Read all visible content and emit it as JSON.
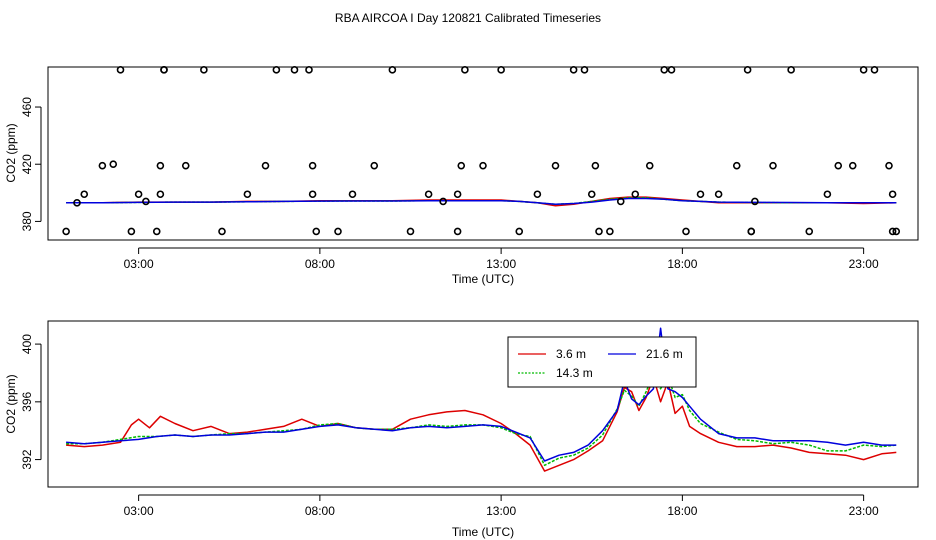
{
  "title": "RBA AIRCOA I  Day 120821  Calibrated Timeseries",
  "colors": {
    "s36": "#dd0000",
    "s143": "#00bb00",
    "s216": "#0000dd",
    "points": "#000000"
  },
  "chart_data": [
    {
      "type": "line",
      "panel": "top",
      "xlabel": "Time (UTC)",
      "ylabel": "CO2 (ppm)",
      "xlim": [
        0.5,
        24.5
      ],
      "ylim": [
        367,
        488
      ],
      "xticks": [
        3,
        8,
        13,
        18,
        23
      ],
      "xtick_labels": [
        "03:00",
        "08:00",
        "13:00",
        "18:00",
        "23:00"
      ],
      "yticks": [
        380,
        420,
        460
      ],
      "ytick_labels": [
        "380",
        "420",
        "460"
      ],
      "grid": false,
      "legend": "none",
      "series": [
        {
          "key": "s36",
          "style": "line",
          "x": [
            1,
            2,
            3,
            4,
            5,
            6,
            7,
            8,
            9,
            10,
            11,
            12,
            13,
            13.5,
            14,
            14.5,
            15,
            15.5,
            16,
            16.5,
            17,
            17.5,
            18,
            18.5,
            19,
            20,
            21,
            22,
            23,
            23.9
          ],
          "y": [
            393,
            393,
            393.5,
            393.5,
            393.5,
            394,
            394,
            394.5,
            394.5,
            394.5,
            395,
            395,
            395,
            394,
            393,
            391,
            392,
            394,
            396,
            397,
            397,
            396,
            395,
            394,
            393,
            393,
            393,
            393,
            392.5,
            393
          ]
        },
        {
          "key": "s143",
          "style": "line",
          "x": [
            1,
            2,
            3,
            4,
            5,
            6,
            7,
            8,
            9,
            10,
            11,
            12,
            13,
            13.5,
            14,
            14.5,
            15,
            15.5,
            16,
            16.5,
            17,
            17.5,
            18,
            18.5,
            19,
            20,
            21,
            22,
            23,
            23.9
          ],
          "y": [
            393,
            393,
            393.3,
            393.5,
            393.5,
            393.7,
            394,
            394.2,
            394.3,
            394.3,
            394.5,
            394.5,
            394.5,
            394,
            393,
            392,
            392.5,
            394,
            395.5,
            396.5,
            396.5,
            395.5,
            394.5,
            394,
            393.5,
            393.2,
            393,
            393,
            393,
            393
          ]
        },
        {
          "key": "s216",
          "style": "line",
          "x": [
            1,
            2,
            3,
            4,
            5,
            6,
            7,
            8,
            9,
            10,
            11,
            12,
            13,
            13.5,
            14,
            14.5,
            15,
            15.5,
            16,
            16.5,
            17,
            17.5,
            18,
            18.5,
            19,
            20,
            21,
            22,
            23,
            23.9
          ],
          "y": [
            393,
            393,
            393.3,
            393.5,
            393.5,
            393.7,
            394,
            394.2,
            394.3,
            394.3,
            394.5,
            394.5,
            394.5,
            394,
            393,
            392,
            392.5,
            393.5,
            395,
            396,
            396,
            395.5,
            394.5,
            394,
            393.5,
            393.3,
            393.2,
            393,
            393,
            393
          ]
        },
        {
          "key": "points",
          "style": "points",
          "x": [
            1.0,
            1.3,
            1.5,
            2.0,
            2.3,
            2.5,
            2.8,
            3.0,
            3.2,
            3.5,
            3.6,
            3.6,
            3.7,
            3.7,
            4.3,
            4.8,
            5.3,
            6.0,
            6.5,
            6.8,
            7.3,
            7.7,
            7.8,
            7.8,
            7.9,
            8.5,
            8.9,
            9.5,
            10.0,
            10.5,
            11.0,
            11.4,
            11.8,
            11.8,
            11.9,
            12.0,
            12.5,
            13.0,
            13.5,
            14.0,
            14.5,
            15.0,
            15.3,
            15.5,
            15.6,
            15.7,
            16.0,
            16.3,
            16.7,
            17.1,
            17.5,
            17.7,
            18.1,
            18.5,
            19.0,
            19.5,
            19.8,
            19.9,
            19.9,
            20.0,
            20.5,
            21.0,
            21.5,
            22.0,
            22.3,
            22.7,
            23.0,
            23.3,
            23.7,
            23.8,
            23.8,
            23.9
          ],
          "y": [
            373,
            393,
            399,
            419,
            420,
            486,
            373,
            399,
            394,
            373,
            399,
            419,
            486,
            486,
            419,
            486,
            373,
            399,
            419,
            486,
            486,
            486,
            419,
            399,
            373,
            373,
            399,
            419,
            486,
            373,
            399,
            394,
            373,
            399,
            419,
            486,
            419,
            486,
            373,
            399,
            419,
            486,
            486,
            399,
            419,
            373,
            373,
            394,
            399,
            419,
            486,
            486,
            373,
            399,
            399,
            419,
            486,
            373,
            373,
            394,
            419,
            486,
            373,
            399,
            419,
            419,
            486,
            486,
            419,
            399,
            373,
            373
          ]
        }
      ]
    },
    {
      "type": "line",
      "panel": "bottom",
      "xlabel": "Time (UTC)",
      "ylabel": "CO2 (ppm)",
      "xlim": [
        0.5,
        24.5
      ],
      "ylim": [
        390.1,
        401.6
      ],
      "xticks": [
        3,
        8,
        13,
        18,
        23
      ],
      "xtick_labels": [
        "03:00",
        "08:00",
        "13:00",
        "18:00",
        "23:00"
      ],
      "yticks": [
        392,
        396,
        400
      ],
      "ytick_labels": [
        "392",
        "396",
        "400"
      ],
      "grid": false,
      "legend": "top-center",
      "series": [
        {
          "key": "s36",
          "name": "3.6 m",
          "x": [
            1.0,
            1.5,
            2.0,
            2.5,
            2.8,
            3.0,
            3.3,
            3.6,
            4.0,
            4.5,
            5.0,
            5.5,
            6.0,
            6.5,
            7.0,
            7.5,
            8.0,
            8.5,
            9.0,
            9.5,
            10.0,
            10.5,
            11.0,
            11.5,
            12.0,
            12.5,
            13.0,
            13.4,
            13.8,
            14.2,
            14.6,
            15.0,
            15.4,
            15.8,
            16.2,
            16.4,
            16.6,
            16.8,
            17.0,
            17.2,
            17.4,
            17.6,
            17.8,
            18.0,
            18.2,
            18.5,
            19.0,
            19.5,
            20.0,
            20.5,
            21.0,
            21.5,
            22.0,
            22.5,
            23.0,
            23.5,
            23.9
          ],
          "y": [
            393.0,
            392.9,
            393.0,
            393.2,
            394.4,
            394.8,
            394.2,
            395.0,
            394.5,
            394.0,
            394.3,
            393.8,
            393.9,
            394.1,
            394.3,
            394.8,
            394.3,
            394.5,
            394.2,
            394.1,
            394.1,
            394.8,
            395.1,
            395.3,
            395.4,
            395.1,
            394.5,
            393.8,
            393.0,
            391.2,
            391.6,
            392.0,
            392.6,
            393.3,
            395.3,
            397.0,
            396.7,
            395.4,
            396.3,
            397.7,
            396.0,
            397.4,
            395.2,
            395.7,
            394.3,
            393.8,
            393.2,
            392.9,
            392.9,
            393.0,
            392.8,
            392.5,
            392.4,
            392.3,
            392.0,
            392.4,
            392.5
          ]
        },
        {
          "key": "s143",
          "name": "14.3 m",
          "x": [
            1.0,
            1.5,
            2.0,
            2.5,
            3.0,
            3.5,
            4.0,
            4.5,
            5.0,
            5.5,
            6.0,
            6.5,
            7.0,
            7.5,
            8.0,
            8.5,
            9.0,
            9.5,
            10.0,
            10.5,
            11.0,
            11.5,
            12.0,
            12.5,
            13.0,
            13.4,
            13.8,
            14.2,
            14.6,
            15.0,
            15.4,
            15.8,
            16.2,
            16.4,
            16.6,
            16.8,
            17.0,
            17.2,
            17.4,
            17.6,
            17.8,
            18.0,
            18.2,
            18.5,
            19.0,
            19.5,
            20.0,
            20.5,
            21.0,
            21.5,
            22.0,
            22.5,
            23.0,
            23.5,
            23.9
          ],
          "y": [
            393.1,
            393.1,
            393.2,
            393.4,
            393.6,
            393.6,
            393.7,
            393.6,
            393.7,
            393.8,
            393.8,
            393.9,
            394.0,
            394.1,
            394.4,
            394.5,
            394.2,
            394.1,
            394.1,
            394.2,
            394.4,
            394.3,
            394.4,
            394.4,
            394.2,
            393.8,
            393.6,
            391.6,
            392.1,
            392.3,
            392.8,
            393.7,
            395.5,
            396.8,
            396.4,
            395.7,
            396.7,
            397.9,
            396.9,
            397.8,
            396.3,
            396.5,
            395.4,
            394.5,
            393.9,
            393.4,
            393.3,
            393.1,
            393.2,
            393.0,
            392.6,
            392.6,
            393.0,
            392.9,
            393.0
          ]
        },
        {
          "key": "s216",
          "name": "21.6 m",
          "x": [
            1.0,
            1.5,
            2.0,
            2.5,
            3.0,
            3.5,
            4.0,
            4.5,
            5.0,
            5.5,
            6.0,
            6.5,
            7.0,
            7.5,
            8.0,
            8.5,
            9.0,
            9.5,
            10.0,
            10.5,
            11.0,
            11.5,
            12.0,
            12.5,
            13.0,
            13.4,
            13.8,
            14.2,
            14.6,
            15.0,
            15.4,
            15.8,
            16.2,
            16.4,
            16.6,
            16.8,
            17.0,
            17.2,
            17.4,
            17.6,
            17.8,
            18.0,
            18.2,
            18.5,
            19.0,
            19.5,
            20.0,
            20.5,
            21.0,
            21.5,
            22.0,
            22.5,
            23.0,
            23.5,
            23.9
          ],
          "y": [
            393.2,
            393.1,
            393.2,
            393.3,
            393.4,
            393.6,
            393.7,
            393.6,
            393.7,
            393.7,
            393.8,
            393.9,
            393.9,
            394.1,
            394.3,
            394.4,
            394.2,
            394.1,
            394.0,
            394.2,
            394.3,
            394.2,
            394.3,
            394.4,
            394.3,
            393.9,
            393.5,
            391.9,
            392.3,
            392.5,
            393.0,
            394.0,
            395.4,
            397.5,
            396.2,
            395.8,
            396.4,
            396.9,
            401.1,
            396.9,
            396.7,
            396.3,
            395.7,
            394.8,
            393.8,
            393.5,
            393.5,
            393.3,
            393.3,
            393.3,
            393.2,
            393.0,
            393.2,
            393.0,
            393.0
          ]
        }
      ]
    }
  ]
}
